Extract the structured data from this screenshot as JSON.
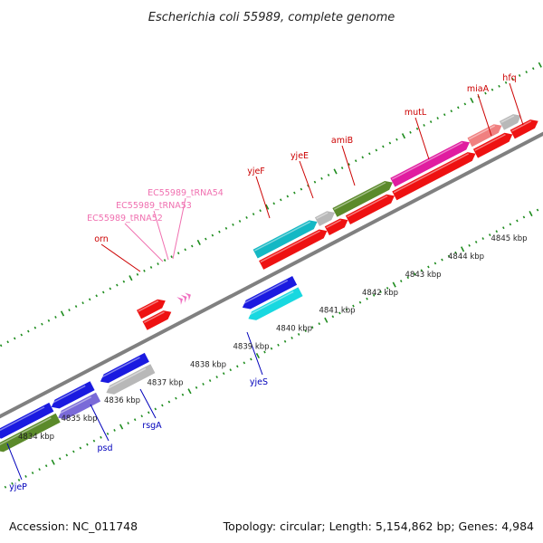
{
  "title": "Escherichia coli 55989, complete genome",
  "footer": {
    "accession": "Accession: NC_011748",
    "summary": "Topology: circular; Length: 5,154,862 bp; Genes: 4,984"
  },
  "colors": {
    "background": "#ffffff",
    "backbone": "#808080",
    "tick": "#1e8c1e",
    "label_plus": "#cc0000",
    "label_minus": "#0000bb",
    "trna_label": "#f070b0",
    "red": "#ee1111",
    "blue": "#1a1ae0",
    "cyan": "#18d8e0",
    "teal": "#14b8c4",
    "olive": "#5b8a2a",
    "gray": "#b8b8b8",
    "magenta": "#e01ca0",
    "pink": "#f08080",
    "violet": "#7a6ad8",
    "trna": "#f070c0"
  },
  "scale": {
    "kbp_labels": [
      "4834 kbp",
      "4835 kbp",
      "4836 kbp",
      "4837 kbp",
      "4838 kbp",
      "4839 kbp",
      "4840 kbp",
      "4841 kbp",
      "4842 kbp",
      "4843 kbp",
      "4844 kbp",
      "4845 kbp"
    ]
  },
  "gene_labels": {
    "plus_strand": [
      "orn",
      "yjeF",
      "yjeE",
      "amiB",
      "mutL",
      "miaA",
      "hfq"
    ],
    "minus_strand": [
      "yjeP",
      "psd",
      "rsgA",
      "yjeS"
    ],
    "trna": [
      "EC55989_tRNA52",
      "EC55989_tRNA53",
      "EC55989_tRNA54"
    ]
  },
  "features": {
    "plus_outer": [
      {
        "color": "red",
        "dir": "plus"
      },
      {
        "color": "teal",
        "dir": "plus"
      },
      {
        "color": "gray",
        "dir": "plus"
      },
      {
        "color": "olive",
        "dir": "plus"
      },
      {
        "color": "magenta",
        "dir": "plus"
      },
      {
        "color": "pink",
        "dir": "plus"
      },
      {
        "color": "gray",
        "dir": "plus"
      }
    ],
    "plus_inner": [
      {
        "color": "red",
        "dir": "plus"
      },
      {
        "color": "red",
        "dir": "plus"
      },
      {
        "color": "red",
        "dir": "plus"
      },
      {
        "color": "red",
        "dir": "plus"
      },
      {
        "color": "red",
        "dir": "plus"
      },
      {
        "color": "red",
        "dir": "plus"
      },
      {
        "color": "red",
        "dir": "plus"
      }
    ],
    "minus_inner": [
      {
        "color": "blue",
        "dir": "minus"
      },
      {
        "color": "blue",
        "dir": "minus"
      },
      {
        "color": "blue",
        "dir": "minus"
      },
      {
        "color": "blue",
        "dir": "minus"
      }
    ],
    "minus_outer": [
      {
        "color": "olive",
        "dir": "minus"
      },
      {
        "color": "violet",
        "dir": "minus"
      },
      {
        "color": "gray",
        "dir": "minus"
      },
      {
        "color": "cyan",
        "dir": "minus"
      }
    ]
  }
}
